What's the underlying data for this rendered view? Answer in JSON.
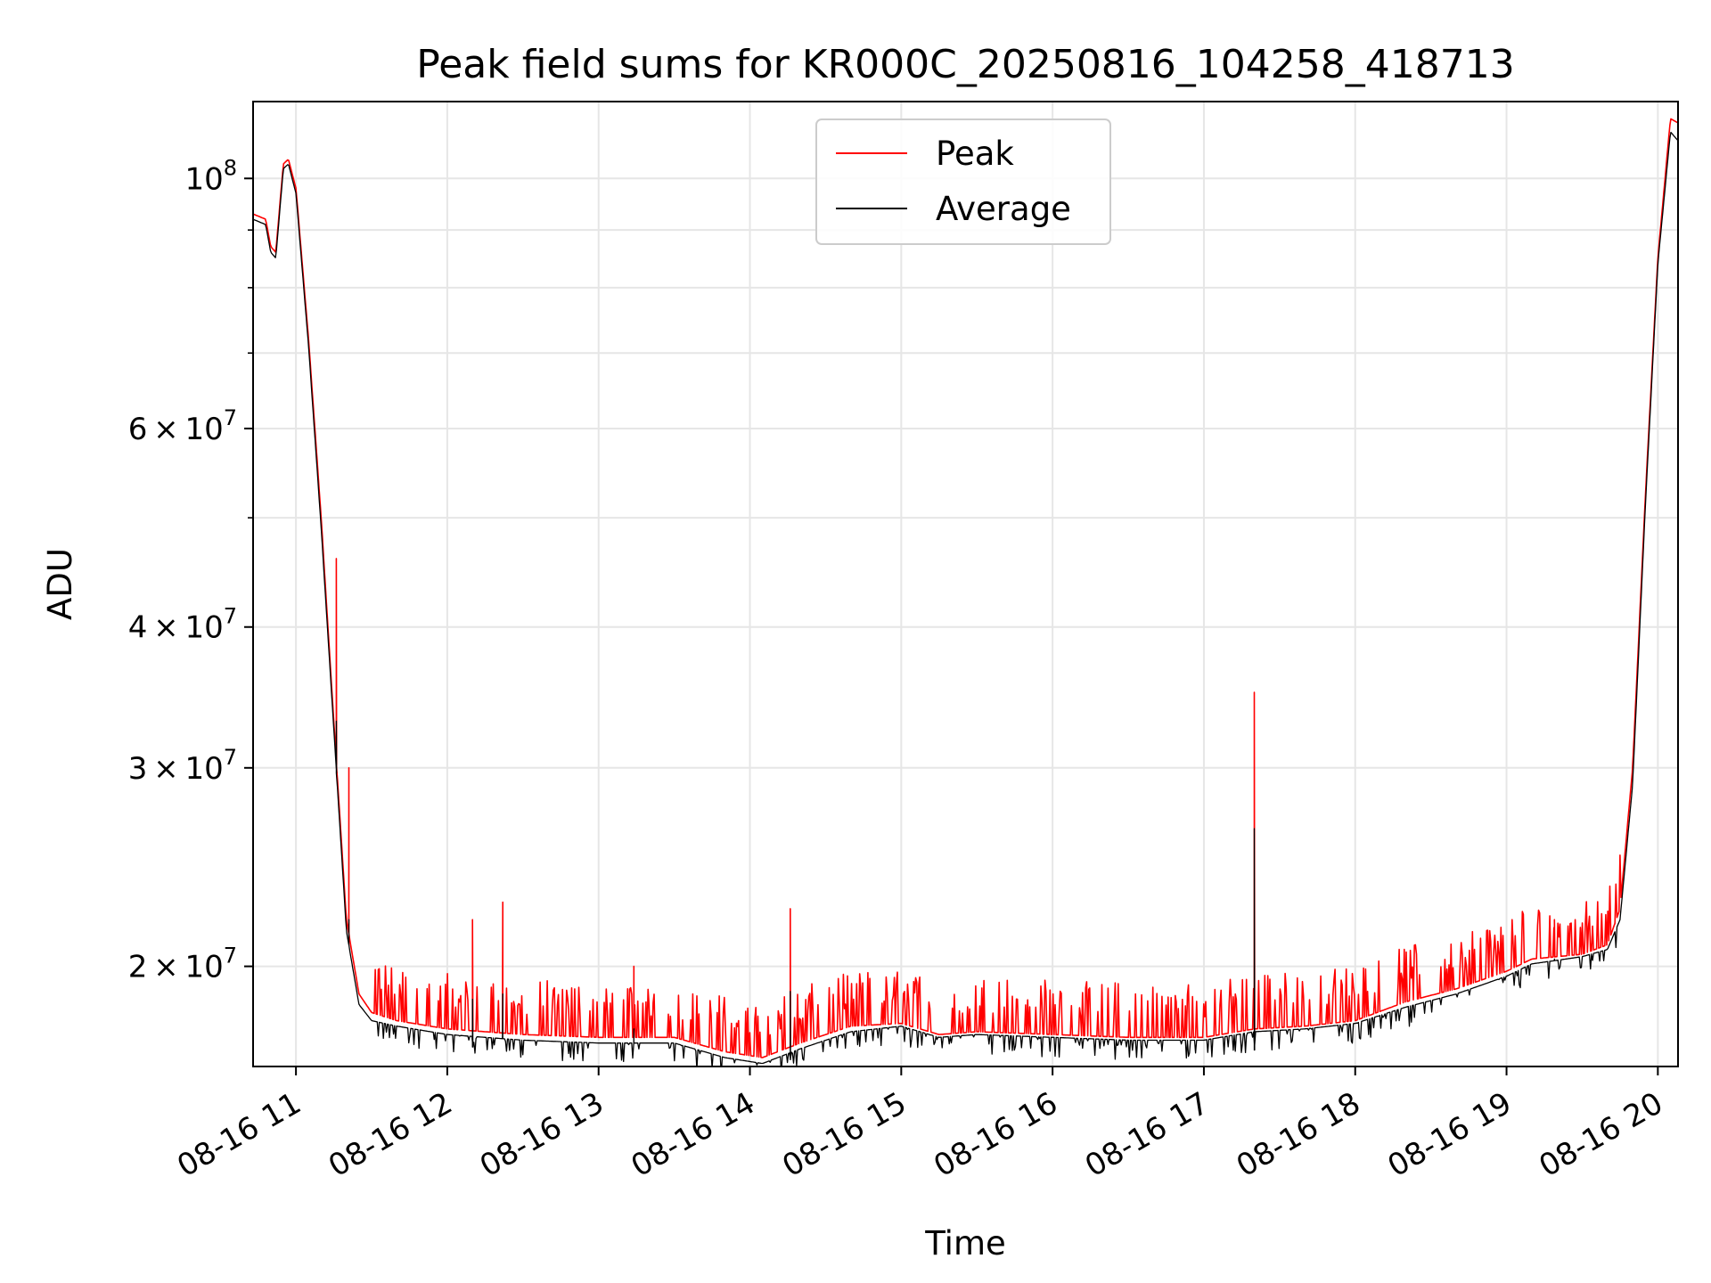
{
  "chart_data": {
    "type": "line",
    "title": "Peak field sums for KR000C_20250816_104258_418713",
    "xlabel": "Time",
    "ylabel": "ADU",
    "yscale": "log",
    "xlim": [
      "2025-08-16 10:43",
      "2025-08-16 20:08"
    ],
    "ylim": [
      16300000,
      117000000
    ],
    "grid": true,
    "legend_position": "upper center",
    "x_ticks": [
      "08-16 11",
      "08-16 12",
      "08-16 13",
      "08-16 14",
      "08-16 15",
      "08-16 16",
      "08-16 17",
      "08-16 18",
      "08-16 19",
      "08-16 20"
    ],
    "y_ticks": [
      {
        "value": 20000000,
        "coef": "2",
        "exp": "7"
      },
      {
        "value": 30000000,
        "coef": "3",
        "exp": "7"
      },
      {
        "value": 40000000,
        "coef": "4",
        "exp": "7"
      },
      {
        "value": 60000000,
        "coef": "6",
        "exp": "7"
      },
      {
        "value": 100000000,
        "coef": "",
        "exp": "8"
      }
    ],
    "y_minor_ticks": [
      50000000,
      70000000,
      80000000,
      90000000
    ],
    "x": [
      "2025-08-16 10:43",
      "2025-08-16 10:48",
      "2025-08-16 10:50",
      "2025-08-16 10:52",
      "2025-08-16 10:55",
      "2025-08-16 10:57",
      "2025-08-16 11:00",
      "2025-08-16 11:05",
      "2025-08-16 11:10",
      "2025-08-16 11:15",
      "2025-08-16 11:20",
      "2025-08-16 11:25",
      "2025-08-16 11:30",
      "2025-08-16 11:40",
      "2025-08-16 12:00",
      "2025-08-16 12:30",
      "2025-08-16 13:00",
      "2025-08-16 13:30",
      "2025-08-16 13:50",
      "2025-08-16 14:05",
      "2025-08-16 14:20",
      "2025-08-16 14:40",
      "2025-08-16 15:00",
      "2025-08-16 15:15",
      "2025-08-16 15:30",
      "2025-08-16 16:00",
      "2025-08-16 16:30",
      "2025-08-16 17:00",
      "2025-08-16 17:20",
      "2025-08-16 17:40",
      "2025-08-16 18:00",
      "2025-08-16 18:20",
      "2025-08-16 18:40",
      "2025-08-16 19:00",
      "2025-08-16 19:10",
      "2025-08-16 19:30",
      "2025-08-16 19:40",
      "2025-08-16 19:45",
      "2025-08-16 19:50",
      "2025-08-16 19:55",
      "2025-08-16 20:00",
      "2025-08-16 20:05",
      "2025-08-16 20:08"
    ],
    "series": [
      {
        "name": "Peak",
        "color": "#ff0000",
        "values": [
          93000000,
          92000000,
          87000000,
          86000000,
          103000000,
          104000000,
          98000000,
          72000000,
          50000000,
          33000000,
          22000000,
          18900000,
          18200000,
          17900000,
          17600000,
          17400000,
          17300000,
          17300000,
          16800000,
          16600000,
          17100000,
          17700000,
          17800000,
          17400000,
          17500000,
          17400000,
          17300000,
          17300000,
          17600000,
          17700000,
          17900000,
          18600000,
          19100000,
          19800000,
          20300000,
          20500000,
          20900000,
          22500000,
          30000000,
          52000000,
          85000000,
          113000000,
          112000000
        ]
      },
      {
        "name": "Average",
        "color": "#000000",
        "values": [
          92000000,
          91000000,
          86000000,
          85000000,
          102000000,
          103000000,
          97000000,
          71000000,
          49000000,
          32500000,
          21500000,
          18500000,
          17900000,
          17700000,
          17400000,
          17200000,
          17100000,
          17100000,
          16600000,
          16400000,
          16900000,
          17500000,
          17700000,
          17300000,
          17400000,
          17300000,
          17200000,
          17200000,
          17500000,
          17600000,
          17800000,
          18400000,
          18900000,
          19600000,
          20100000,
          20400000,
          20700000,
          22000000,
          29000000,
          51000000,
          84000000,
          110000000,
          108000000
        ]
      }
    ],
    "spikes": [
      {
        "x": "2025-08-16 11:16",
        "peak": 46000000,
        "average": 33000000
      },
      {
        "x": "2025-08-16 11:21",
        "peak": 30000000,
        "average": 22000000
      },
      {
        "x": "2025-08-16 12:10",
        "peak": 22000000,
        "average": 18700000
      },
      {
        "x": "2025-08-16 12:22",
        "peak": 22800000,
        "average": 18900000
      },
      {
        "x": "2025-08-16 13:14",
        "peak": 20000000,
        "average": 17600000
      },
      {
        "x": "2025-08-16 14:16",
        "peak": 22500000,
        "average": 19000000
      },
      {
        "x": "2025-08-16 17:20",
        "peak": 35000000,
        "average": 26500000
      },
      {
        "x": "2025-08-16 19:19",
        "peak": 22000000,
        "average": 20300000
      }
    ]
  }
}
